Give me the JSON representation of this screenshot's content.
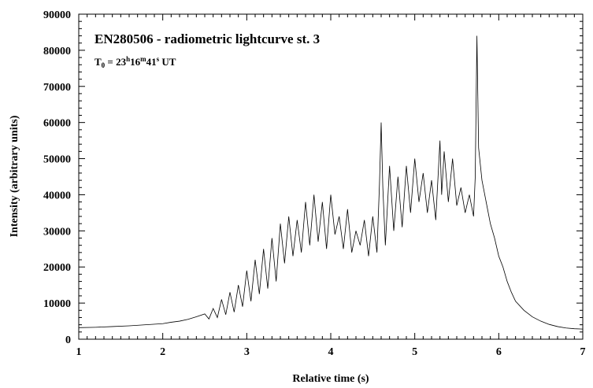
{
  "chart_data": {
    "type": "line",
    "title": "EN280506 - radiometric lightcurve st. 3",
    "subtitle": {
      "prefix": "T",
      "sub": "0",
      "eq": " = 23",
      "h": "h",
      "m_val": "16",
      "m": "m",
      "s_val": "41",
      "s": "s",
      "suffix": " UT"
    },
    "xlabel": "Relative time (s)",
    "ylabel": "Intensity (arbitrary units)",
    "xlim": [
      1,
      7
    ],
    "ylim": [
      0,
      90000
    ],
    "x_ticks": [
      1,
      2,
      3,
      4,
      5,
      6,
      7
    ],
    "x_tick_labels": [
      "1",
      "2",
      "3",
      "4",
      "5",
      "6",
      "7"
    ],
    "y_ticks": [
      0,
      10000,
      20000,
      30000,
      40000,
      50000,
      60000,
      70000,
      80000,
      90000
    ],
    "y_tick_labels": [
      "0",
      "10000",
      "20000",
      "30000",
      "40000",
      "50000",
      "60000",
      "70000",
      "80000",
      "90000"
    ],
    "grid": false,
    "line_color": "#000000",
    "series": [
      {
        "x": [
          1.0,
          1.2,
          1.4,
          1.6,
          1.8,
          2.0,
          2.1,
          2.2,
          2.3,
          2.4,
          2.5,
          2.55,
          2.6,
          2.65,
          2.7,
          2.75,
          2.8,
          2.85,
          2.9,
          2.95,
          3.0,
          3.05,
          3.1,
          3.15,
          3.2,
          3.25,
          3.3,
          3.35,
          3.4,
          3.45,
          3.5,
          3.55,
          3.6,
          3.65,
          3.7,
          3.75,
          3.8,
          3.85,
          3.9,
          3.95,
          4.0,
          4.05,
          4.1,
          4.15,
          4.2,
          4.25,
          4.3,
          4.35,
          4.4,
          4.45,
          4.5,
          4.55,
          4.58,
          4.6,
          4.62,
          4.65,
          4.7,
          4.75,
          4.8,
          4.85,
          4.9,
          4.95,
          5.0,
          5.05,
          5.1,
          5.15,
          5.2,
          5.25,
          5.3,
          5.32,
          5.35,
          5.4,
          5.45,
          5.5,
          5.55,
          5.6,
          5.65,
          5.7,
          5.72,
          5.74,
          5.76,
          5.8,
          5.85,
          5.9,
          5.95,
          6.0,
          6.05,
          6.1,
          6.15,
          6.2,
          6.3,
          6.4,
          6.5,
          6.6,
          6.7,
          6.8,
          6.9,
          7.0
        ],
        "y": [
          3200,
          3300,
          3500,
          3700,
          4000,
          4300,
          4700,
          5000,
          5500,
          6200,
          7000,
          5600,
          8500,
          6000,
          11000,
          6800,
          13000,
          7500,
          15000,
          9000,
          19000,
          10500,
          22000,
          12500,
          25000,
          14000,
          28000,
          16000,
          32000,
          21000,
          34000,
          23000,
          33000,
          24000,
          38000,
          26000,
          40000,
          27000,
          38000,
          25000,
          40000,
          29000,
          34000,
          25000,
          36000,
          24000,
          30000,
          26000,
          33000,
          23000,
          34000,
          24000,
          43000,
          60000,
          42000,
          26000,
          48000,
          30000,
          45000,
          31000,
          48000,
          35000,
          50000,
          38000,
          46000,
          35000,
          44000,
          33000,
          55000,
          40000,
          52000,
          38000,
          50000,
          37000,
          42000,
          35000,
          40000,
          34000,
          45000,
          84000,
          53000,
          44000,
          38000,
          32000,
          28000,
          23000,
          20000,
          16000,
          13000,
          10500,
          8000,
          6200,
          5000,
          4100,
          3500,
          3100,
          2900,
          2800
        ]
      }
    ]
  }
}
